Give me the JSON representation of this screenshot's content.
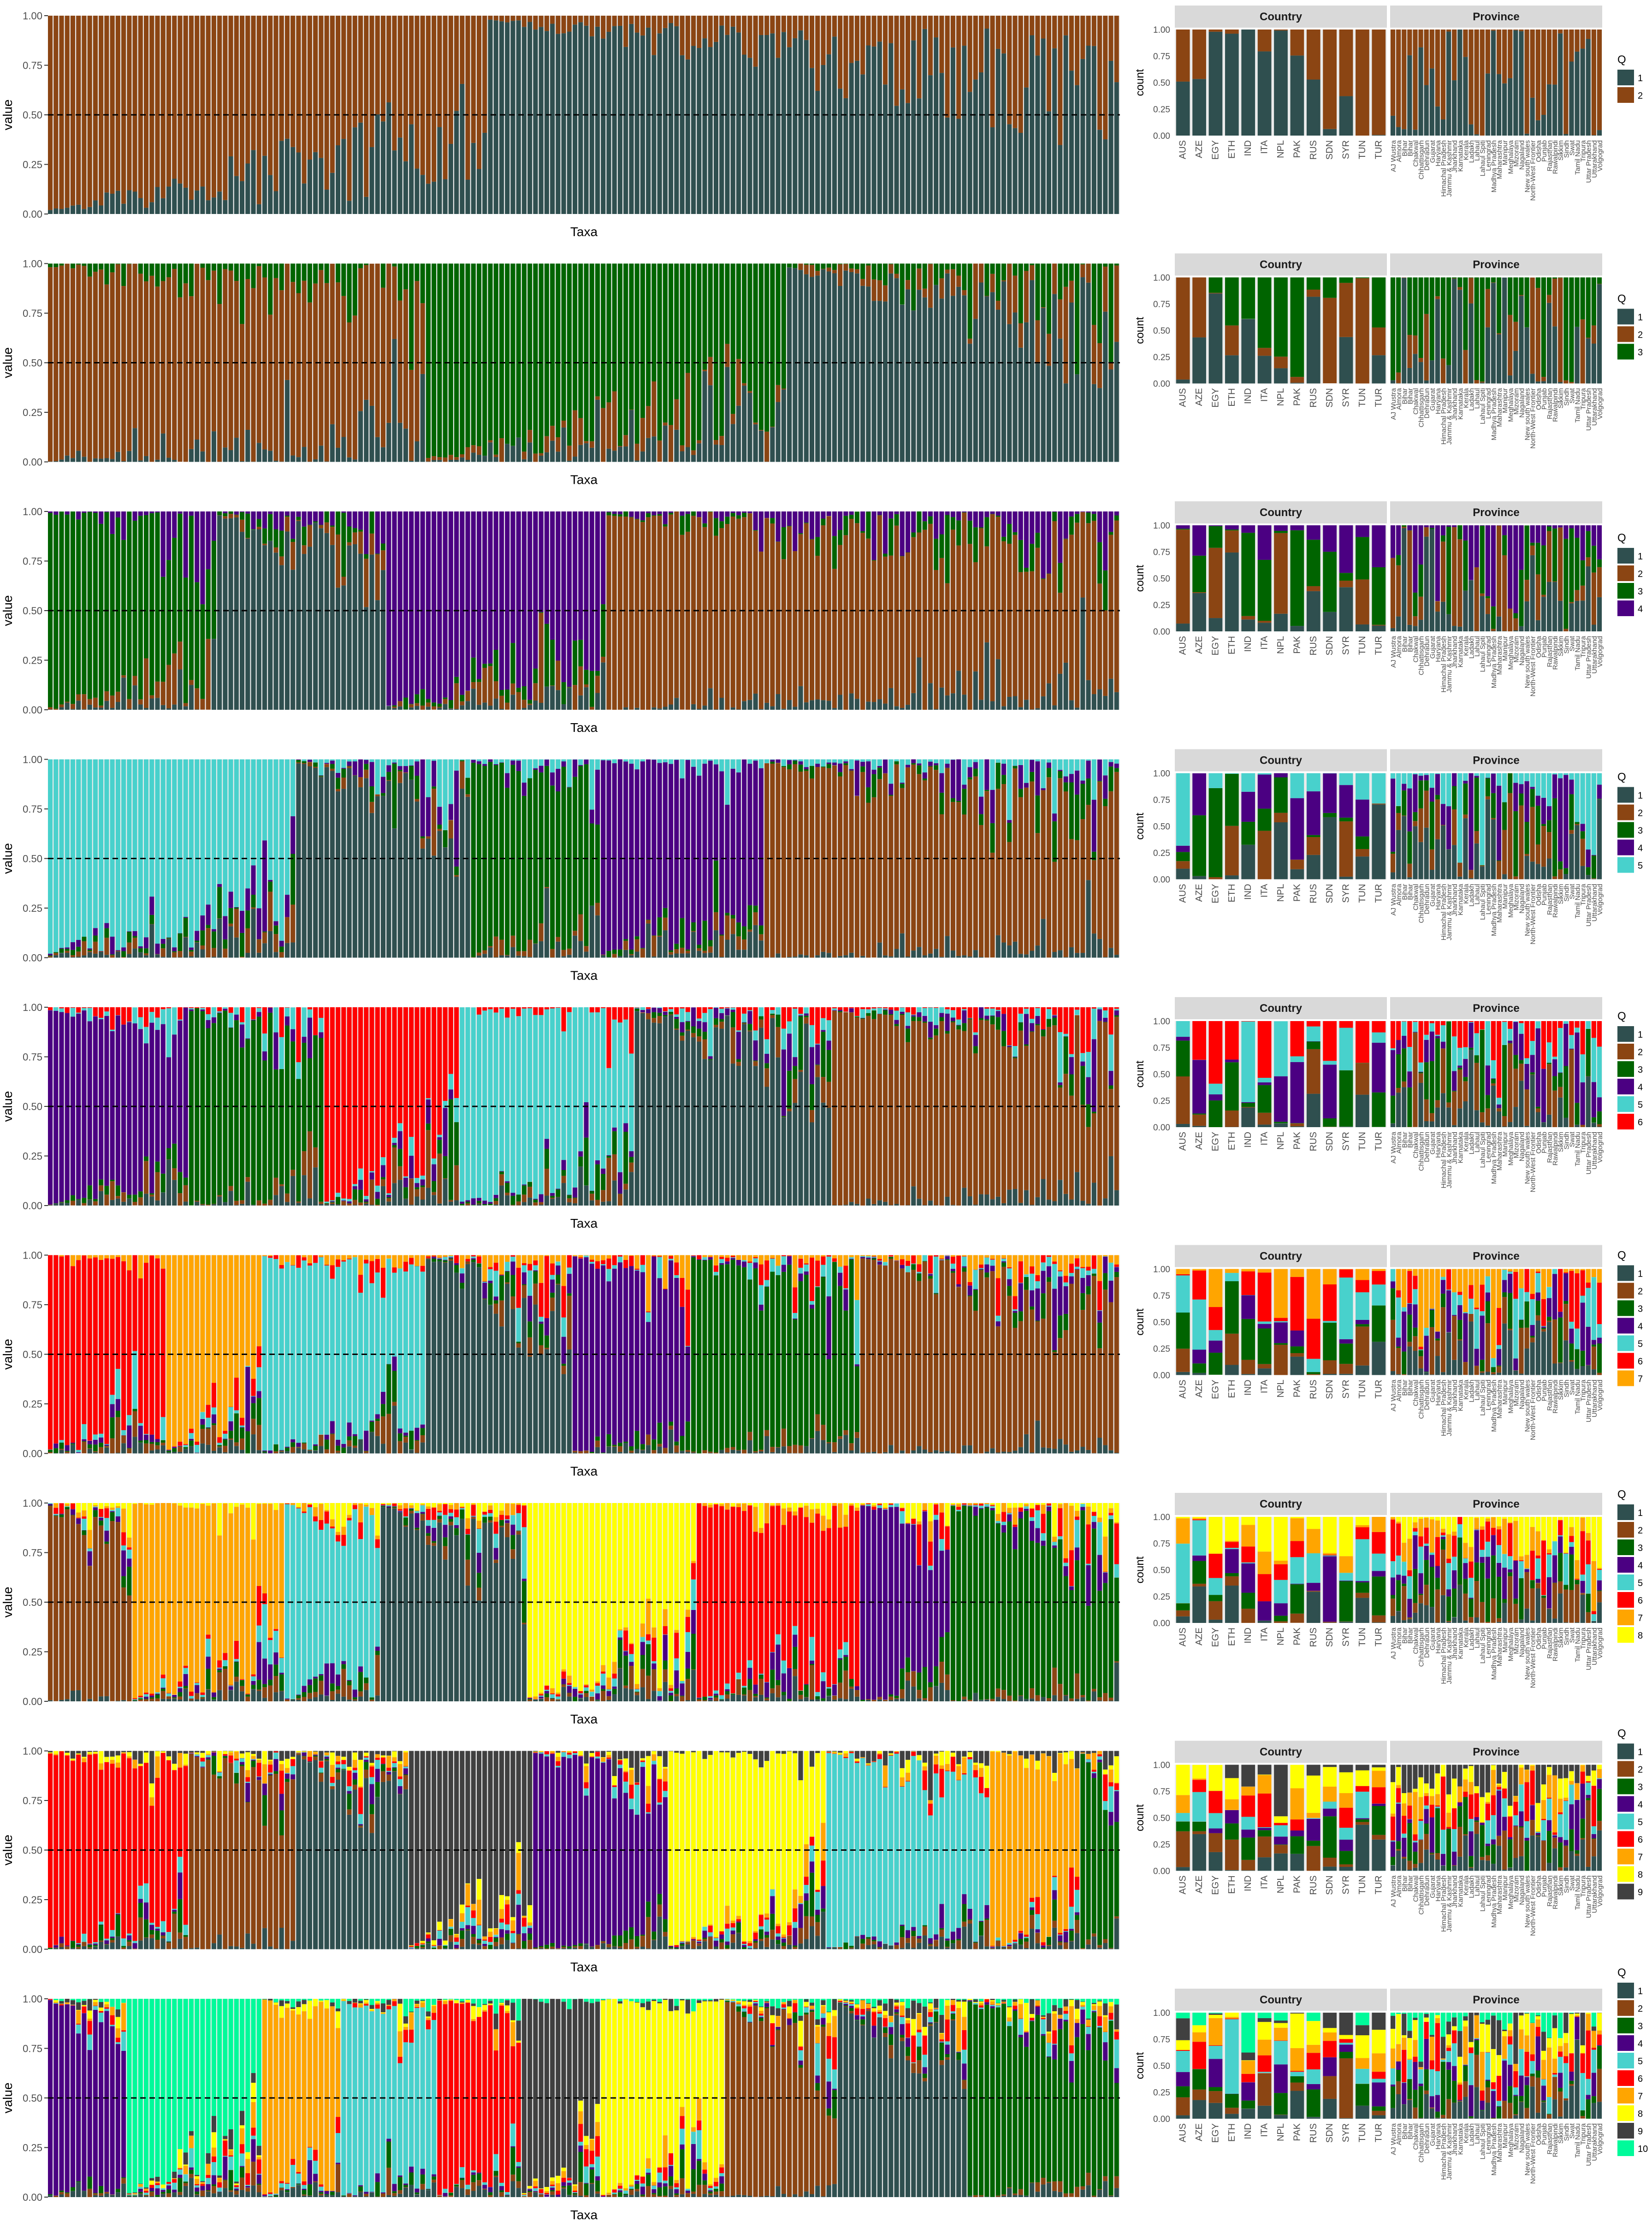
{
  "figure": {
    "main_xlabel": "Taxa",
    "main_ylabel": "value",
    "side_ylabel": "count",
    "facet_labels": [
      "Country",
      "Province"
    ],
    "legend_title": "Q",
    "country_labels": [
      "AUS",
      "AZE",
      "EGY",
      "ETH",
      "IND",
      "ITA",
      "NPL",
      "PAK",
      "RUS",
      "SDN",
      "SYR",
      "TUN",
      "TUR"
    ],
    "province_labels": [
      "AJ Wustra",
      "Almora",
      "Bihar",
      "Bihar",
      "Chakwal",
      "Chhattisgarh",
      "Dehradun",
      "Gujarat",
      "Haryana",
      "Himachal Pradesh",
      "Jammu & Kashmir",
      "Jharkhand",
      "Karnataka",
      "Kerala",
      "Ladakh",
      "Lahaul",
      "Lahaul Spiti",
      "Leningrad",
      "Madhya Pradesh",
      "Maharashtra",
      "Manipur",
      "Meghalaya",
      "Mizoram",
      "Nagaland",
      "New south wales",
      "North-West Frontier",
      "Odisha",
      "Punjab",
      "Rajasthan",
      "Rawalpindi",
      "Sikkim",
      "Sindh",
      "Swat",
      "Tamil Nadu",
      "Tripura",
      "Uttar Pradesh",
      "Uttarakhand",
      "Volgograd"
    ],
    "q_colors": [
      "#2f4f4f",
      "#8b4513",
      "#006400",
      "#4b0082",
      "#48d1cc",
      "#ff0000",
      "#ffa500",
      "#ffff00",
      "#404040",
      "#00fa9a"
    ],
    "y_ticks": [
      "0.00",
      "0.25",
      "0.50",
      "0.75",
      "1.00"
    ],
    "reference_line_y": 0.5,
    "taxa_count": 190,
    "country_bar_count": 13,
    "province_bar_count": 38
  },
  "chart_data": [
    {
      "type": "bar",
      "stacked": true,
      "k": 2,
      "xlabel": "Taxa",
      "ylabel": "value",
      "ylim": [
        0,
        1
      ],
      "legend_entries": [
        "1",
        "2"
      ],
      "seed": 11
    },
    {
      "type": "bar",
      "stacked": true,
      "k": 3,
      "xlabel": "Taxa",
      "ylabel": "value",
      "ylim": [
        0,
        1
      ],
      "legend_entries": [
        "1",
        "2",
        "3"
      ],
      "seed": 23
    },
    {
      "type": "bar",
      "stacked": true,
      "k": 4,
      "xlabel": "Taxa",
      "ylabel": "value",
      "ylim": [
        0,
        1
      ],
      "legend_entries": [
        "1",
        "2",
        "3",
        "4"
      ],
      "seed": 37
    },
    {
      "type": "bar",
      "stacked": true,
      "k": 5,
      "xlabel": "Taxa",
      "ylabel": "value",
      "ylim": [
        0,
        1
      ],
      "legend_entries": [
        "1",
        "2",
        "3",
        "4",
        "5"
      ],
      "seed": 41
    },
    {
      "type": "bar",
      "stacked": true,
      "k": 6,
      "xlabel": "Taxa",
      "ylabel": "value",
      "ylim": [
        0,
        1
      ],
      "legend_entries": [
        "1",
        "2",
        "3",
        "4",
        "5",
        "6"
      ],
      "seed": 53
    },
    {
      "type": "bar",
      "stacked": true,
      "k": 7,
      "xlabel": "Taxa",
      "ylabel": "value",
      "ylim": [
        0,
        1
      ],
      "legend_entries": [
        "1",
        "2",
        "3",
        "4",
        "5",
        "6",
        "7"
      ],
      "seed": 67
    },
    {
      "type": "bar",
      "stacked": true,
      "k": 8,
      "xlabel": "Taxa",
      "ylabel": "value",
      "ylim": [
        0,
        1
      ],
      "legend_entries": [
        "1",
        "2",
        "3",
        "4",
        "5",
        "6",
        "7",
        "8"
      ],
      "seed": 79
    },
    {
      "type": "bar",
      "stacked": true,
      "k": 9,
      "xlabel": "Taxa",
      "ylabel": "value",
      "ylim": [
        0,
        1
      ],
      "legend_entries": [
        "1",
        "2",
        "3",
        "4",
        "5",
        "6",
        "7",
        "8",
        "9"
      ],
      "seed": 83
    },
    {
      "type": "bar",
      "stacked": true,
      "k": 10,
      "xlabel": "Taxa",
      "ylabel": "value",
      "ylim": [
        0,
        1
      ],
      "legend_entries": [
        "1",
        "2",
        "3",
        "4",
        "5",
        "6",
        "7",
        "8",
        "9",
        "10"
      ],
      "seed": 97
    }
  ]
}
